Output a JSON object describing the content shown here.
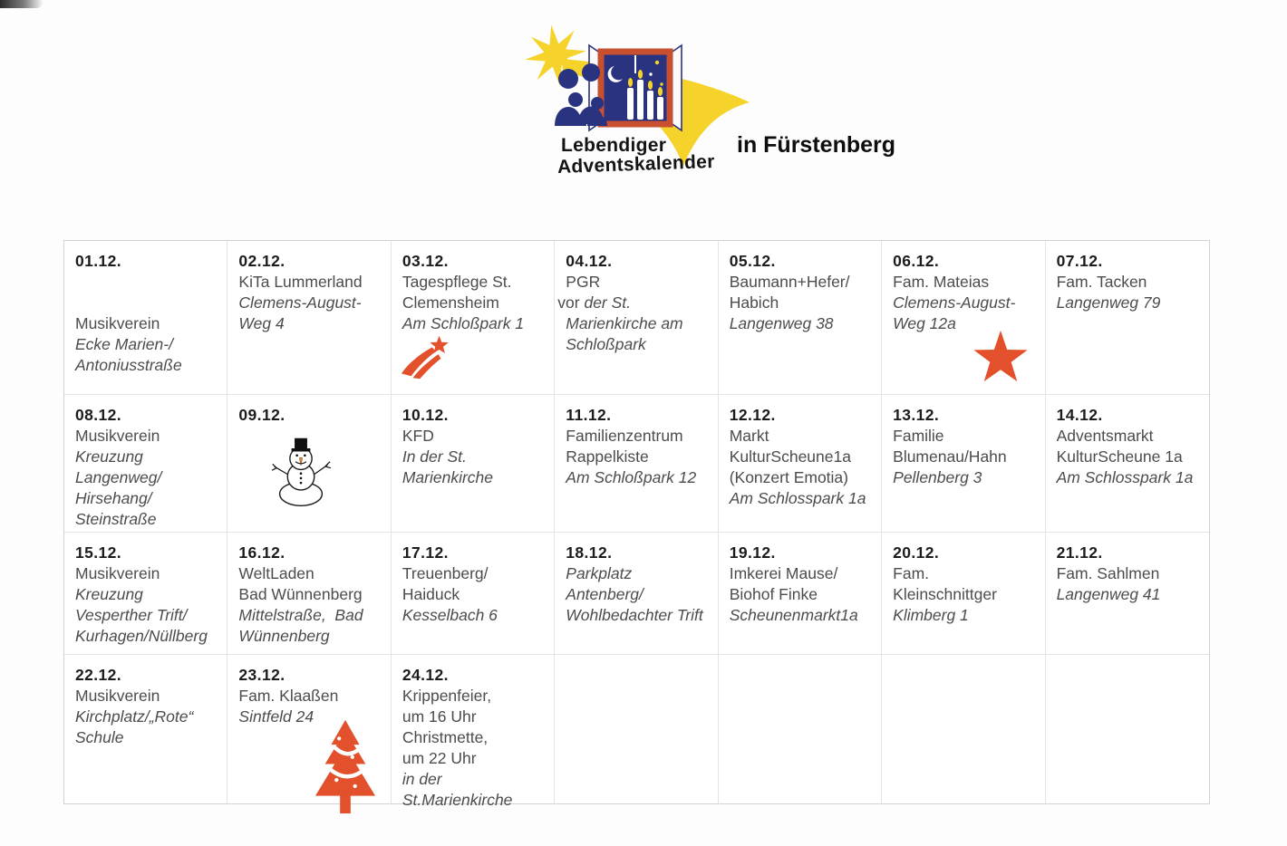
{
  "header": {
    "logo_text_line1": "Lebendiger",
    "logo_text_line2": "Adventskalender",
    "location": "in Fürstenberg",
    "logo_icon": "shooting-star-window-logo"
  },
  "colors": {
    "accent_orange": "#E2512B",
    "star_yellow": "#F5D32B",
    "window_blue": "#2A3380",
    "frame_red": "#C8502F",
    "border_gray": "#D2D2D2",
    "date_color": "#1C1C1C",
    "body_color": "#4C4C4C"
  },
  "calendar": {
    "cells": [
      {
        "date": "01.12.",
        "icon": null,
        "lines": [
          {
            "text": ""
          },
          {
            "text": ""
          },
          {
            "text": "Musikverein"
          },
          {
            "text": "Ecke Marien-/",
            "italic": true
          },
          {
            "text": "Antoniusstraße",
            "italic": true
          }
        ]
      },
      {
        "date": "02.12.",
        "icon": null,
        "lines": [
          {
            "text": "KiTa Lummerland"
          },
          {
            "text": "Clemens-August-",
            "italic": true
          },
          {
            "text": "Weg 4",
            "italic": true
          }
        ]
      },
      {
        "date": "03.12.",
        "icon": "shooting-star",
        "lines": [
          {
            "text": "Tagespflege St."
          },
          {
            "text": "Clemensheim"
          },
          {
            "text": "Am Schloßpark 1",
            "italic": true
          }
        ]
      },
      {
        "date": "04.12.",
        "icon": null,
        "lines": [
          {
            "text": "PGR"
          },
          {
            "outdent": true,
            "parts": [
              {
                "text": "vor ",
                "italic": false
              },
              {
                "text": "der St.",
                "italic": true
              }
            ]
          },
          {
            "text": "Marienkirche am",
            "italic": true
          },
          {
            "text": "Schloßpark",
            "italic": true
          }
        ]
      },
      {
        "date": "05.12.",
        "icon": null,
        "lines": [
          {
            "text": "Baumann+Hefer/"
          },
          {
            "text": "Habich"
          },
          {
            "text": "Langenweg 38",
            "italic": true
          }
        ]
      },
      {
        "date": "06.12.",
        "icon": "big-star",
        "lines": [
          {
            "text": "Fam. Mateias"
          },
          {
            "text": "Clemens-August-",
            "italic": true
          },
          {
            "text": "Weg 12a",
            "italic": true
          }
        ]
      },
      {
        "date": "07.12.",
        "icon": null,
        "lines": [
          {
            "text": "Fam. Tacken"
          },
          {
            "text": "Langenweg 79",
            "italic": true
          }
        ]
      },
      {
        "date": "08.12.",
        "icon": null,
        "lines": [
          {
            "text": "Musikverein"
          },
          {
            "text": "Kreuzung",
            "italic": true
          },
          {
            "text": "Langenweg/",
            "italic": true
          },
          {
            "text": "Hirsehang/",
            "italic": true
          },
          {
            "text": "Steinstraße",
            "italic": true
          }
        ]
      },
      {
        "date": "09.12.",
        "icon": "snowman",
        "lines": []
      },
      {
        "date": "10.12.",
        "icon": null,
        "lines": [
          {
            "text": "KFD"
          },
          {
            "text": "In der St.",
            "italic": true
          },
          {
            "text": "Marienkirche",
            "italic": true
          }
        ]
      },
      {
        "date": "11.12.",
        "icon": null,
        "lines": [
          {
            "text": "Familienzentrum"
          },
          {
            "text": "Rappelkiste"
          },
          {
            "text": "Am Schloßpark 12",
            "italic": true
          }
        ]
      },
      {
        "date": "12.12.",
        "icon": null,
        "lines": [
          {
            "text": "Markt"
          },
          {
            "text": "KulturScheune1a"
          },
          {
            "text": "(Konzert Emotia)"
          },
          {
            "text": "Am Schlosspark 1a",
            "italic": true
          }
        ]
      },
      {
        "date": "13.12.",
        "icon": null,
        "lines": [
          {
            "text": "Familie"
          },
          {
            "text": "Blumenau/Hahn"
          },
          {
            "text": "Pellenberg 3",
            "italic": true
          }
        ]
      },
      {
        "date": "14.12.",
        "icon": null,
        "lines": [
          {
            "text": "Adventsmarkt"
          },
          {
            "text": "KulturScheune 1a"
          },
          {
            "text": "Am Schlosspark 1a",
            "italic": true
          }
        ]
      },
      {
        "date": "15.12.",
        "icon": null,
        "lines": [
          {
            "text": "Musikverein"
          },
          {
            "text": "Kreuzung",
            "italic": true
          },
          {
            "text": "Vesperther Trift/",
            "italic": true
          },
          {
            "text": "Kurhagen/Nüllberg",
            "italic": true
          }
        ]
      },
      {
        "date": "16.12.",
        "icon": null,
        "lines": [
          {
            "text": "WeltLaden"
          },
          {
            "text": "Bad Wünnenberg"
          },
          {
            "text": "Mittelstraße,  Bad",
            "italic": true
          },
          {
            "text": "Wünnenberg",
            "italic": true
          }
        ]
      },
      {
        "date": "17.12.",
        "icon": null,
        "lines": [
          {
            "text": "Treuenberg/"
          },
          {
            "text": "Haiduck"
          },
          {
            "text": "Kesselbach 6",
            "italic": true
          }
        ]
      },
      {
        "date": "18.12.",
        "icon": null,
        "lines": [
          {
            "text": "Parkplatz",
            "italic": true
          },
          {
            "text": "Antenberg/",
            "italic": true
          },
          {
            "text": "Wohlbedachter Trift",
            "italic": true
          }
        ]
      },
      {
        "date": "19.12.",
        "icon": null,
        "lines": [
          {
            "text": "Imkerei Mause/"
          },
          {
            "text": "Biohof Finke"
          },
          {
            "text": "Scheunenmarkt1a",
            "italic": true
          }
        ]
      },
      {
        "date": "20.12.",
        "icon": null,
        "lines": [
          {
            "text": "Fam."
          },
          {
            "text": "Kleinschnittger"
          },
          {
            "text": "Klimberg 1",
            "italic": true
          }
        ]
      },
      {
        "date": "21.12.",
        "icon": null,
        "lines": [
          {
            "text": "Fam. Sahlmen"
          },
          {
            "text": "Langenweg 41",
            "italic": true
          }
        ]
      },
      {
        "date": "22.12.",
        "icon": null,
        "lines": [
          {
            "text": "Musikverein"
          },
          {
            "text": "Kirchplatz/„Rote“",
            "italic": true
          },
          {
            "text": "Schule",
            "italic": true
          }
        ]
      },
      {
        "date": "23.12.",
        "icon": "christmas-tree",
        "lines": [
          {
            "text": "Fam. Klaaßen"
          },
          {
            "text": "Sintfeld 24",
            "italic": true
          }
        ]
      },
      {
        "date": "24.12.",
        "icon": null,
        "lines": [
          {
            "text": "Krippenfeier,"
          },
          {
            "text": "um 16 Uhr"
          },
          {
            "text": "Christmette,"
          },
          {
            "text": "um 22 Uhr"
          },
          {
            "text": "in der",
            "italic": true
          },
          {
            "text": "St.Marienkirche",
            "italic": true
          }
        ]
      },
      {
        "date": "",
        "icon": null,
        "lines": []
      },
      {
        "date": "",
        "icon": null,
        "lines": []
      },
      {
        "date": "",
        "icon": null,
        "lines": []
      },
      {
        "date": "",
        "icon": null,
        "lines": []
      }
    ]
  }
}
